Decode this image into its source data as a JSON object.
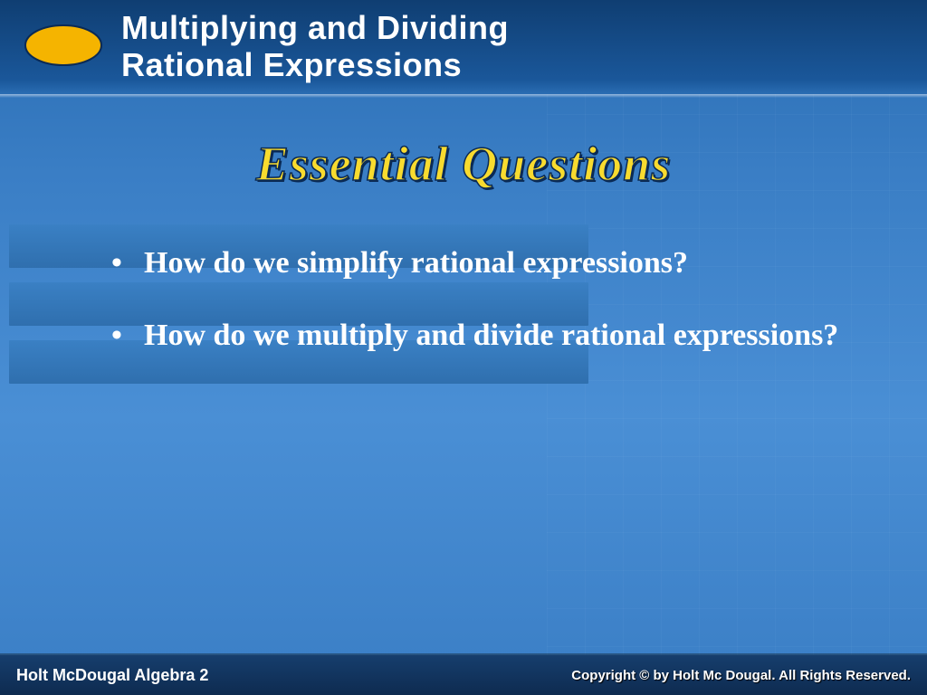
{
  "colors": {
    "bg_gradient_top": "#2a6db3",
    "bg_gradient_mid": "#4a8fd5",
    "header_top": "#0f3e72",
    "header_bottom": "#1a579a",
    "stripe_top": "#3a80c4",
    "stripe_bottom": "#2f6fae",
    "footer_top": "#163e6d",
    "footer_bottom": "#0e2b50",
    "subtitle_fill": "#f8db2f",
    "subtitle_stroke": "#0a2a55",
    "logo_fill": "#f5b400",
    "logo_stroke": "#0a2a55",
    "text_white": "#ffffff"
  },
  "header": {
    "title": "Multiplying and Dividing Rational Expressions",
    "title_fontsize": 36,
    "title_font": "Verdana"
  },
  "logo": {
    "shape": "ellipse",
    "width": 92,
    "height": 54
  },
  "subtitle": {
    "text": "Essential Questions",
    "fontsize": 54,
    "italic": true,
    "bold": true
  },
  "content": {
    "stripe_count": 3,
    "stripe_height": 48,
    "stripe_gap": 16,
    "bullets": [
      "How do we simplify rational expressions?",
      "How do we multiply and divide rational expressions?"
    ],
    "bullet_fontsize": 34,
    "bullet_font": "Times New Roman"
  },
  "footer": {
    "left": "Holt McDougal Algebra 2",
    "right": "Copyright © by Holt Mc Dougal. All Rights Reserved."
  }
}
